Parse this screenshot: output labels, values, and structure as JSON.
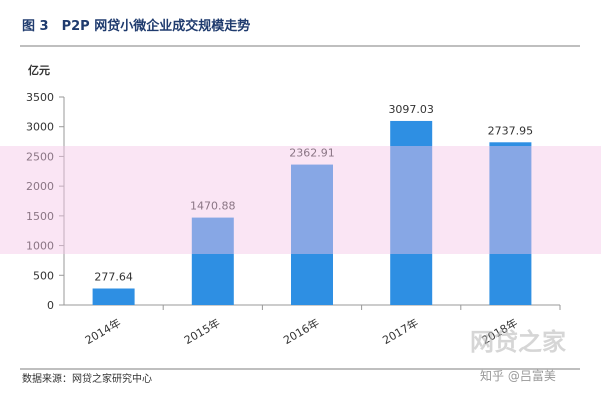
{
  "chart_data": {
    "type": "bar",
    "title": "图 3　P2P 网贷小微企业成交规模走势",
    "y_axis_label": "亿元",
    "categories": [
      "2014年",
      "2015年",
      "2016年",
      "2017年",
      "2018年"
    ],
    "values": [
      277.64,
      1470.88,
      2362.91,
      3097.03,
      2737.95
    ],
    "color": "#2e8fe3",
    "ylim": [
      0,
      3500
    ],
    "yticks": [
      0,
      500,
      1000,
      1500,
      2000,
      2500,
      3000,
      3500
    ],
    "source": "数据来源：网贷之家研究中心",
    "watermark": "知乎 @吕富美",
    "logo_watermark": "网贷之家"
  }
}
